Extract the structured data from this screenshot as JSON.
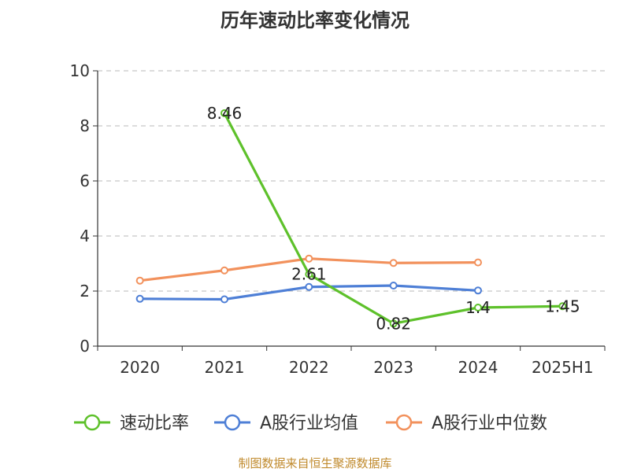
{
  "chart_data": {
    "type": "line",
    "title": "历年速动比率变化情况",
    "categories": [
      "2020",
      "2021",
      "2022",
      "2023",
      "2024",
      "2025H1"
    ],
    "ylim": [
      0,
      10
    ],
    "yticks": [
      0,
      2,
      4,
      6,
      8,
      10
    ],
    "grid": true,
    "legend_position": "bottom",
    "series": [
      {
        "name": "速动比率",
        "color": "#5ec12b",
        "values": [
          null,
          8.46,
          2.61,
          0.82,
          1.4,
          1.45
        ],
        "labels": [
          "",
          "8.46",
          "2.61",
          "0.82",
          "1.4",
          "1.45"
        ]
      },
      {
        "name": "A股行业均值",
        "color": "#4e7fd6",
        "values": [
          1.72,
          1.7,
          2.15,
          2.2,
          2.02,
          null
        ]
      },
      {
        "name": "A股行业中位数",
        "color": "#f2915c",
        "values": [
          2.38,
          2.75,
          3.18,
          3.02,
          3.04,
          null
        ]
      }
    ]
  },
  "source_text": "制图数据来自恒生聚源数据库"
}
